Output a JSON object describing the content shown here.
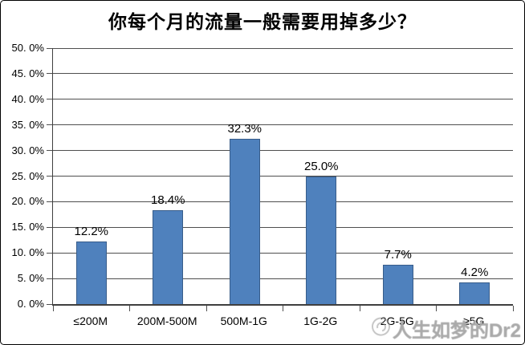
{
  "chart": {
    "title": "你每个月的流量一般需要用掉多少？"
  },
  "chart_data": {
    "type": "bar",
    "title": "你每个月的流量一般需要用掉多少？",
    "categories": [
      "≤200M",
      "200M-500M",
      "500M-1G",
      "1G-2G",
      "2G-5G",
      "≥5G"
    ],
    "values": [
      12.2,
      18.4,
      32.3,
      25.0,
      7.7,
      4.2
    ],
    "value_labels": [
      "12.2%",
      "18.4%",
      "32.3%",
      "25.0%",
      "7.7%",
      "4.2%"
    ],
    "y_tick_labels": [
      "0. 0%",
      "5. 0%",
      "10. 0%",
      "15. 0%",
      "20. 0%",
      "25. 0%",
      "30. 0%",
      "35. 0%",
      "40. 0%",
      "45. 0%",
      "50. 0%"
    ],
    "ylim": [
      0,
      50
    ],
    "y_step": 5,
    "xlabel": "",
    "ylabel": "",
    "grid": true,
    "legend": "none",
    "colors": {
      "bar_fill": "#4f81bd",
      "bar_border": "#385d8a",
      "gridline": "#4f4f4f",
      "axis": "#3f3f3f",
      "text": "#000000",
      "watermark": "#bebebe"
    }
  },
  "watermark": {
    "icon": "weibo-logo-icon",
    "text": "人生如梦的Dr2"
  }
}
